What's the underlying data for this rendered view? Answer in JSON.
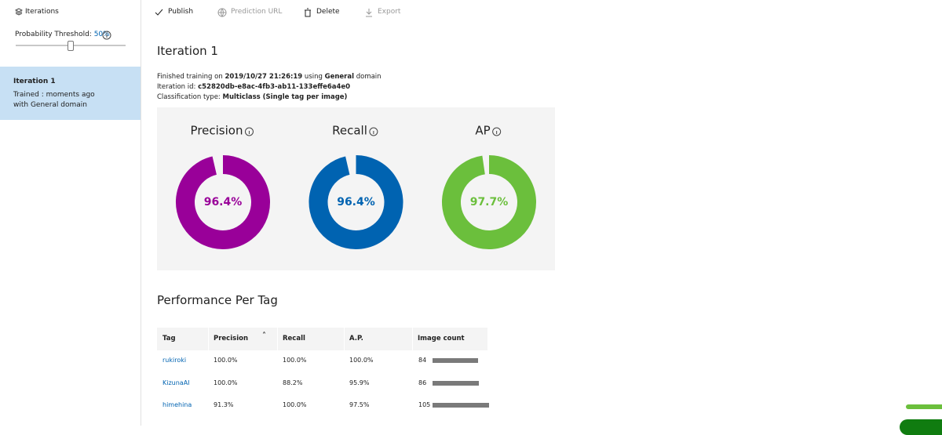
{
  "sidebar": {
    "title": "Iterations",
    "threshold_label": "Probability Threshold:",
    "threshold_value": "50%",
    "iterations": [
      {
        "name": "Iteration 1",
        "detail": "Trained : moments ago with General domain"
      }
    ]
  },
  "toolbar": [
    {
      "label": "Publish",
      "enabled": true
    },
    {
      "label": "Prediction URL",
      "enabled": false
    },
    {
      "label": "Delete",
      "enabled": true
    },
    {
      "label": "Export",
      "enabled": false
    }
  ],
  "iteration": {
    "title": "Iteration 1",
    "info": [
      [
        {
          "text": "Finished training on ",
          "bold": false
        },
        {
          "text": "2019/10/27 21:26:19",
          "bold": true
        },
        {
          "text": " using ",
          "bold": false
        },
        {
          "text": "General",
          "bold": true
        },
        {
          "text": " domain",
          "bold": false
        }
      ],
      [
        {
          "text": "Iteration id: ",
          "bold": false
        },
        {
          "text": "c52820db-e8ac-4fb3-ab11-133effe6a4e0",
          "bold": true
        }
      ],
      [
        {
          "text": "Classification type: ",
          "bold": false
        },
        {
          "text": "Multiclass (Single tag per image)",
          "bold": true
        }
      ]
    ],
    "metrics": [
      {
        "name": "Precision",
        "value": 96.4,
        "value_label": "96.4%",
        "color": "#990099"
      },
      {
        "name": "Recall",
        "value": 96.4,
        "value_label": "96.4%",
        "color": "#0063b1"
      },
      {
        "name": "AP",
        "value": 97.7,
        "value_label": "97.7%",
        "color": "#6bbf3c"
      }
    ]
  },
  "performance": {
    "title": "Performance Per Tag",
    "headers": [
      "Tag",
      "Precision",
      "Recall",
      "A.P.",
      "Image count"
    ],
    "rows": [
      {
        "tag": "rukiroki",
        "precision": "100.0%",
        "recall": "100.0%",
        "ap": "100.0%",
        "image_count": 84
      },
      {
        "tag": "KizunaAI",
        "precision": "100.0%",
        "recall": "88.2%",
        "ap": "95.9%",
        "image_count": 86
      },
      {
        "tag": "himehina",
        "precision": "91.3%",
        "recall": "100.0%",
        "ap": "97.5%",
        "image_count": 105
      }
    ]
  }
}
